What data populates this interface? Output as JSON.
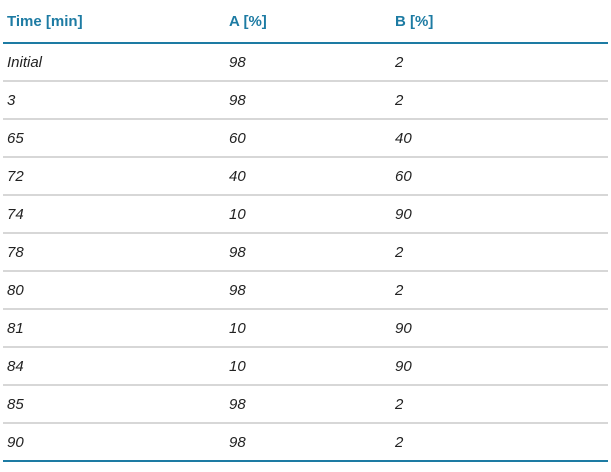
{
  "table": {
    "headers": [
      "Time [min]",
      "A [%]",
      "B [%]"
    ],
    "rows": [
      [
        "Initial",
        "98",
        "2"
      ],
      [
        "3",
        "98",
        "2"
      ],
      [
        "65",
        "60",
        "40"
      ],
      [
        "72",
        "40",
        "60"
      ],
      [
        "74",
        "10",
        "90"
      ],
      [
        "78",
        "98",
        "2"
      ],
      [
        "80",
        "98",
        "2"
      ],
      [
        "81",
        "10",
        "90"
      ],
      [
        "84",
        "10",
        "90"
      ],
      [
        "85",
        "98",
        "2"
      ],
      [
        "90",
        "98",
        "2"
      ]
    ]
  },
  "colors": {
    "header_text": "#1d7ba3",
    "accent_rule": "#1d7ba3",
    "row_rule": "#d7d7d7",
    "cell_text": "#222222"
  }
}
